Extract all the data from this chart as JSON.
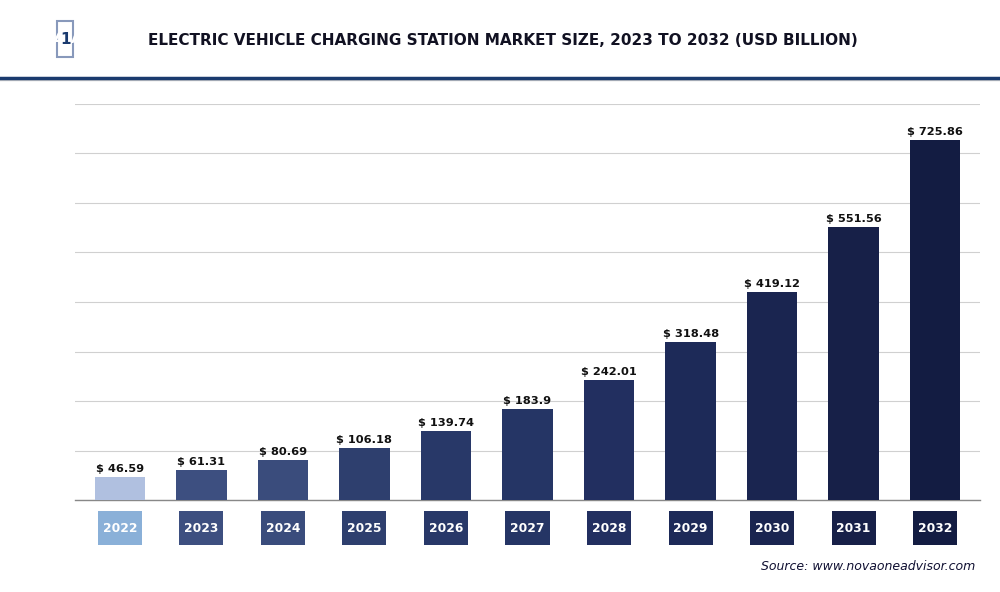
{
  "years": [
    "2022",
    "2023",
    "2024",
    "2025",
    "2026",
    "2027",
    "2028",
    "2029",
    "2030",
    "2031",
    "2032"
  ],
  "values": [
    46.59,
    61.31,
    80.69,
    106.18,
    139.74,
    183.9,
    242.01,
    318.48,
    419.12,
    551.56,
    725.86
  ],
  "bar_colors": [
    "#b0c0e0",
    "#3d4f80",
    "#3a4c7c",
    "#2e3f6e",
    "#283868",
    "#253565",
    "#222f60",
    "#1d2a58",
    "#1a2550",
    "#172048",
    "#131c42"
  ],
  "tick_colors": [
    "#8ab0d8",
    "#3d4f80",
    "#3a4c7c",
    "#2e3f6e",
    "#283868",
    "#253565",
    "#222f60",
    "#1d2a58",
    "#1a2550",
    "#172048",
    "#131c42"
  ],
  "value_labels": [
    "$ 46.59",
    "$ 61.31",
    "$ 80.69",
    "$ 106.18",
    "$ 139.74",
    "$ 183.9",
    "$ 242.01",
    "$ 318.48",
    "$ 419.12",
    "$ 551.56",
    "$ 725.86"
  ],
  "title": "ELECTRIC VEHICLE CHARGING STATION MARKET SIZE, 2023 TO 2032 (USD BILLION)",
  "source_text": "Source: www.novaoneadvisor.com",
  "ylim": [
    0,
    800
  ],
  "grid_color": "#d0d0d0",
  "background_color": "#ffffff",
  "logo_bg": "#1a3a6e",
  "header_line_color": "#1a3a6e",
  "header_sep_color": "#cccccc"
}
